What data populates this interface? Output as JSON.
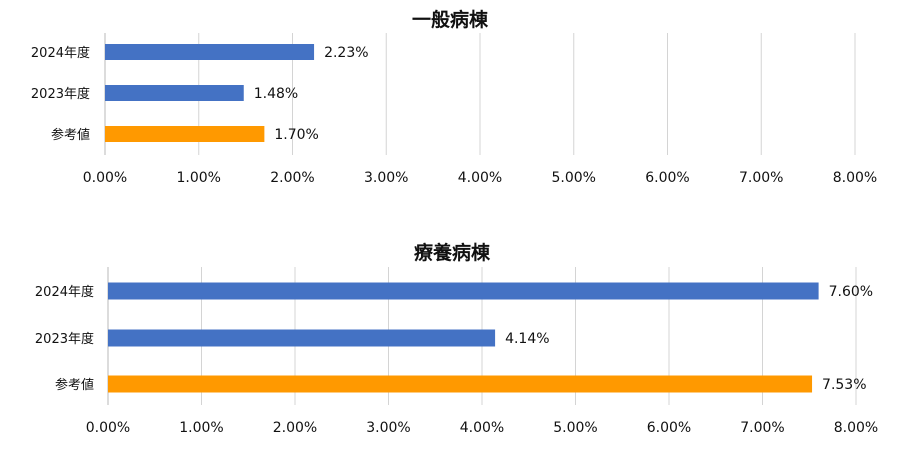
{
  "chart_data": [
    {
      "type": "bar",
      "orientation": "horizontal",
      "title": "一般病棟",
      "categories": [
        "2024年度",
        "2023年度",
        "参考値"
      ],
      "values": [
        2.23,
        1.48,
        1.7
      ],
      "data_labels": [
        "2.23%",
        "1.48%",
        "1.70%"
      ],
      "colors": [
        "#4472C4",
        "#4472C4",
        "#FF9900"
      ],
      "xlim": [
        0,
        8
      ],
      "ticks": [
        0,
        1,
        2,
        3,
        4,
        5,
        6,
        7,
        8
      ],
      "tick_labels": [
        "0.00%",
        "1.00%",
        "2.00%",
        "3.00%",
        "4.00%",
        "5.00%",
        "6.00%",
        "7.00%",
        "8.00%"
      ],
      "grid": true,
      "legend": "none"
    },
    {
      "type": "bar",
      "orientation": "horizontal",
      "title": "療養病棟",
      "categories": [
        "2024年度",
        "2023年度",
        "参考値"
      ],
      "values": [
        7.6,
        4.14,
        7.53
      ],
      "data_labels": [
        "7.60%",
        "4.14%",
        "7.53%"
      ],
      "colors": [
        "#4472C4",
        "#4472C4",
        "#FF9900"
      ],
      "xlim": [
        0,
        8
      ],
      "ticks": [
        0,
        1,
        2,
        3,
        4,
        5,
        6,
        7,
        8
      ],
      "tick_labels": [
        "0.00%",
        "1.00%",
        "2.00%",
        "3.00%",
        "4.00%",
        "5.00%",
        "6.00%",
        "7.00%",
        "8.00%"
      ],
      "grid": true,
      "legend": "none"
    }
  ]
}
